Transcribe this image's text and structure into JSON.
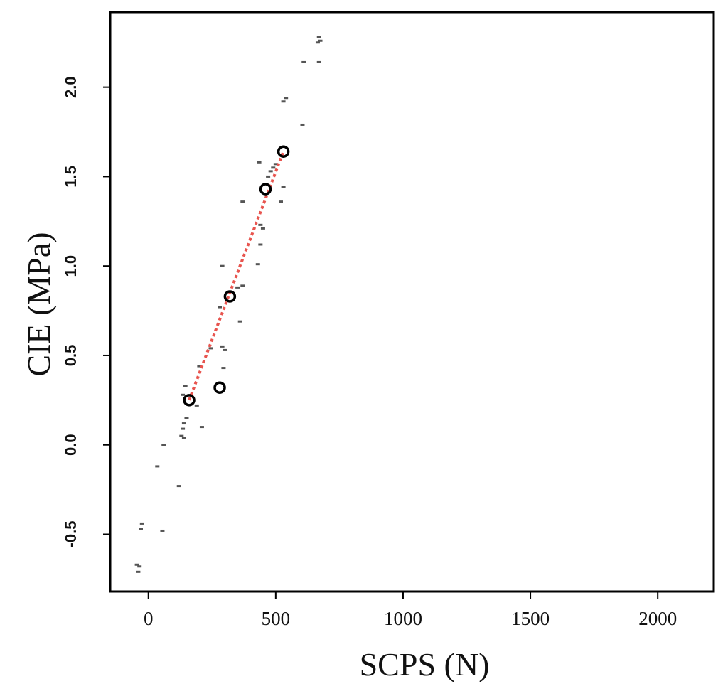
{
  "chart_data": {
    "type": "scatter",
    "title": "",
    "xlabel": "SCPS (N)",
    "ylabel": "CIE (MPa)",
    "xlim": [
      -150,
      2220
    ],
    "ylim": [
      -0.82,
      2.42
    ],
    "x_ticks": [
      0,
      500,
      1000,
      1500,
      2000
    ],
    "y_ticks": [
      -0.5,
      0.0,
      0.5,
      1.0,
      1.5,
      2.0
    ],
    "x_tick_labels": [
      "0",
      "500",
      "1000",
      "1500",
      "2000"
    ],
    "y_tick_labels": [
      "-0.5",
      "0.0",
      "0.5",
      "1.0",
      "1.5",
      "2.0"
    ],
    "grid": false,
    "legend": "none",
    "series": [
      {
        "role": "background points",
        "color": "#555555",
        "marker": "dash",
        "points": [
          [
            670,
            2.28
          ],
          [
            675,
            2.26
          ],
          [
            665,
            2.25
          ],
          [
            610,
            2.14
          ],
          [
            670,
            2.14
          ],
          [
            530,
            1.92
          ],
          [
            540,
            1.94
          ],
          [
            605,
            1.79
          ],
          [
            435,
            1.58
          ],
          [
            500,
            1.57
          ],
          [
            480,
            1.53
          ],
          [
            490,
            1.55
          ],
          [
            470,
            1.5
          ],
          [
            530,
            1.44
          ],
          [
            520,
            1.36
          ],
          [
            370,
            1.36
          ],
          [
            440,
            1.23
          ],
          [
            450,
            1.21
          ],
          [
            440,
            1.12
          ],
          [
            430,
            1.01
          ],
          [
            290,
            1.0
          ],
          [
            350,
            0.88
          ],
          [
            370,
            0.89
          ],
          [
            280,
            0.77
          ],
          [
            360,
            0.69
          ],
          [
            290,
            0.55
          ],
          [
            300,
            0.53
          ],
          [
            245,
            0.54
          ],
          [
            200,
            0.44
          ],
          [
            295,
            0.43
          ],
          [
            145,
            0.33
          ],
          [
            135,
            0.28
          ],
          [
            190,
            0.22
          ],
          [
            150,
            0.15
          ],
          [
            140,
            0.12
          ],
          [
            135,
            0.09
          ],
          [
            130,
            0.05
          ],
          [
            140,
            0.04
          ],
          [
            210,
            0.1
          ],
          [
            60,
            0.0
          ],
          [
            35,
            -0.12
          ],
          [
            120,
            -0.23
          ],
          [
            -25,
            -0.44
          ],
          [
            -30,
            -0.47
          ],
          [
            55,
            -0.48
          ],
          [
            -45,
            -0.67
          ],
          [
            -35,
            -0.68
          ],
          [
            -40,
            -0.71
          ]
        ]
      },
      {
        "role": "highlighted points",
        "color": "#000000",
        "marker": "circle",
        "points": [
          [
            160,
            0.25
          ],
          [
            280,
            0.32
          ],
          [
            320,
            0.83
          ],
          [
            460,
            1.43
          ],
          [
            530,
            1.64
          ]
        ]
      },
      {
        "role": "fit line",
        "color": "#e8544e",
        "style": "dotted",
        "points": [
          [
            160,
            0.25
          ],
          [
            530,
            1.64
          ]
        ]
      }
    ]
  }
}
